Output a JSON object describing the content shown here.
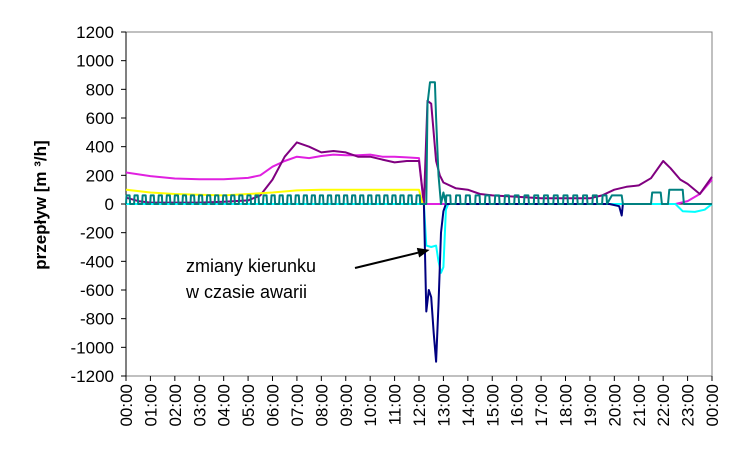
{
  "chart_data": {
    "type": "line",
    "title": "",
    "xlabel": "",
    "ylabel": "przepływ [m ³/h]",
    "ylim": [
      -1200,
      1200
    ],
    "yticks": [
      1200,
      1000,
      800,
      600,
      400,
      200,
      0,
      -200,
      -400,
      -600,
      -800,
      -1000,
      -1200
    ],
    "xlim": [
      0,
      24
    ],
    "xtick_labels": [
      "00:00",
      "01:00",
      "02:00",
      "03:00",
      "04:00",
      "05:00",
      "06:00",
      "07:00",
      "08:00",
      "09:00",
      "10:00",
      "11:00",
      "12:00",
      "13:00",
      "14:00",
      "15:00",
      "16:00",
      "17:00",
      "18:00",
      "19:00",
      "20:00",
      "21:00",
      "22:00",
      "23:00",
      "00:00"
    ],
    "grid": false,
    "legend": "none",
    "annotation": {
      "line1": "zmiany kierunku",
      "line2": "w czasie awarii",
      "arrow_to": [
        12.6,
        -320
      ]
    },
    "series": [
      {
        "color": "#e020e0",
        "points": [
          [
            0,
            220
          ],
          [
            1,
            195
          ],
          [
            2,
            178
          ],
          [
            3,
            172
          ],
          [
            4,
            172
          ],
          [
            5,
            182
          ],
          [
            5.5,
            200
          ],
          [
            6,
            260
          ],
          [
            6.5,
            300
          ],
          [
            7,
            330
          ],
          [
            7.5,
            320
          ],
          [
            8,
            335
          ],
          [
            8.5,
            345
          ],
          [
            9,
            340
          ],
          [
            9.5,
            340
          ],
          [
            10,
            345
          ],
          [
            10.5,
            330
          ],
          [
            11,
            330
          ],
          [
            11.5,
            325
          ],
          [
            12,
            320
          ],
          [
            12.2,
            0
          ],
          [
            22.5,
            0
          ],
          [
            23,
            20
          ],
          [
            23.5,
            70
          ],
          [
            24,
            170
          ]
        ]
      },
      {
        "color": "#800080",
        "points": [
          [
            0,
            45
          ],
          [
            0.5,
            20
          ],
          [
            1,
            10
          ],
          [
            2,
            10
          ],
          [
            3,
            10
          ],
          [
            4,
            15
          ],
          [
            5,
            25
          ],
          [
            5.5,
            60
          ],
          [
            6,
            170
          ],
          [
            6.5,
            330
          ],
          [
            7,
            430
          ],
          [
            7.5,
            400
          ],
          [
            8,
            360
          ],
          [
            8.5,
            370
          ],
          [
            9,
            360
          ],
          [
            9.5,
            330
          ],
          [
            10,
            330
          ],
          [
            10.5,
            310
          ],
          [
            11,
            290
          ],
          [
            11.5,
            300
          ],
          [
            12,
            300
          ],
          [
            12.2,
            0
          ],
          [
            12.35,
            720
          ],
          [
            12.5,
            700
          ],
          [
            12.7,
            300
          ],
          [
            12.85,
            200
          ],
          [
            13,
            150
          ],
          [
            13.5,
            110
          ],
          [
            14,
            100
          ],
          [
            14.5,
            70
          ],
          [
            15,
            60
          ],
          [
            16,
            50
          ],
          [
            17,
            40
          ],
          [
            18,
            40
          ],
          [
            19,
            40
          ],
          [
            19.5,
            60
          ],
          [
            20,
            100
          ],
          [
            20.5,
            120
          ],
          [
            21,
            130
          ],
          [
            21.5,
            180
          ],
          [
            22,
            300
          ],
          [
            22.3,
            250
          ],
          [
            22.7,
            170
          ],
          [
            23,
            140
          ],
          [
            23.5,
            70
          ],
          [
            24,
            190
          ]
        ]
      },
      {
        "color": "#ffff00",
        "points": [
          [
            0,
            100
          ],
          [
            1,
            80
          ],
          [
            2,
            70
          ],
          [
            3,
            65
          ],
          [
            4,
            60
          ],
          [
            5,
            70
          ],
          [
            6,
            80
          ],
          [
            7,
            95
          ],
          [
            8,
            100
          ],
          [
            9,
            100
          ],
          [
            10,
            100
          ],
          [
            11,
            100
          ],
          [
            12,
            100
          ],
          [
            12.15,
            0
          ]
        ]
      },
      {
        "color": "#00ffff",
        "points": [
          [
            0,
            0
          ],
          [
            12.2,
            0
          ],
          [
            12.3,
            -290
          ],
          [
            12.5,
            -300
          ],
          [
            12.7,
            -290
          ],
          [
            12.8,
            -400
          ],
          [
            12.9,
            -480
          ],
          [
            13,
            -440
          ],
          [
            13.1,
            -40
          ],
          [
            13.2,
            0
          ],
          [
            22.5,
            0
          ],
          [
            22.8,
            -50
          ],
          [
            23.3,
            -55
          ],
          [
            23.7,
            -40
          ],
          [
            24,
            0
          ]
        ]
      },
      {
        "color": "#000080",
        "points": [
          [
            12.2,
            0
          ],
          [
            12.3,
            -750
          ],
          [
            12.4,
            -600
          ],
          [
            12.5,
            -650
          ],
          [
            12.6,
            -900
          ],
          [
            12.7,
            -1100
          ],
          [
            12.8,
            -700
          ],
          [
            12.9,
            -200
          ],
          [
            13,
            -50
          ],
          [
            13.1,
            0
          ],
          [
            19.8,
            0
          ],
          [
            20.2,
            -15
          ],
          [
            20.3,
            -80
          ],
          [
            20.35,
            0
          ]
        ]
      },
      {
        "color": "#008080",
        "pulses": {
          "low": 0,
          "high": 60,
          "period": 0.33,
          "x_start": 0,
          "x_end": 12.15
        },
        "points": [
          [
            12.15,
            0
          ],
          [
            12.3,
            0
          ],
          [
            12.35,
            700
          ],
          [
            12.45,
            850
          ],
          [
            12.65,
            850
          ],
          [
            12.7,
            600
          ],
          [
            12.8,
            200
          ],
          [
            12.9,
            0
          ],
          [
            13,
            80
          ],
          [
            13.1,
            0
          ]
        ],
        "pulses2": {
          "low": 0,
          "high": 60,
          "period": 0.4,
          "x_start": 13.1,
          "x_end": 19.7
        },
        "tail": [
          [
            19.7,
            0
          ],
          [
            19.9,
            60
          ],
          [
            20.3,
            60
          ],
          [
            20.35,
            0
          ],
          [
            21.5,
            0
          ],
          [
            21.55,
            80
          ],
          [
            21.9,
            80
          ],
          [
            21.95,
            0
          ],
          [
            22.2,
            0
          ],
          [
            22.25,
            100
          ],
          [
            22.8,
            100
          ],
          [
            22.85,
            0
          ],
          [
            24,
            0
          ]
        ]
      }
    ]
  }
}
